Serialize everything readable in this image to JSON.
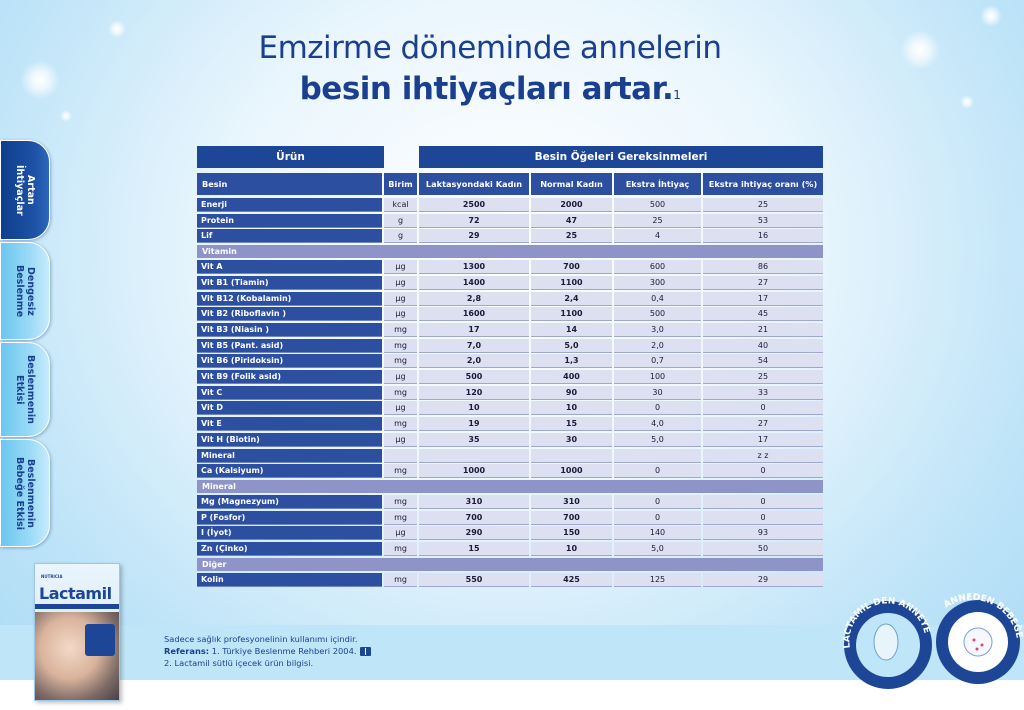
{
  "title": {
    "line1": "Emzirme döneminde annelerin",
    "line2": "besin ihtiyaçları artar.",
    "sup": "1"
  },
  "tabs": [
    {
      "label": "Artan\nİhtiyaçlar",
      "active": true
    },
    {
      "label": "Dengesiz\nBeslenme",
      "active": false
    },
    {
      "label": "Beslenmenin\nEtkisi",
      "active": false
    },
    {
      "label": "Beslenmenin\nBebeğe Etkisi",
      "active": false
    }
  ],
  "table": {
    "header_left": "Ürün",
    "header_right": "Besin Öğeleri Gereksinmeleri",
    "columns": [
      "Besin",
      "Birim",
      "Laktasyondaki Kadın",
      "Normal Kadın",
      "Ekstra İhtiyaç",
      "Ekstra ihtiyaç oranı (%)"
    ],
    "rows": [
      {
        "type": "row",
        "cells": [
          "Enerji",
          "kcal",
          "2500",
          "2000",
          "500",
          "25"
        ]
      },
      {
        "type": "row",
        "cells": [
          "Protein",
          "g",
          "72",
          "47",
          "25",
          "53"
        ]
      },
      {
        "type": "row",
        "cells": [
          "Lif",
          "g",
          "29",
          "25",
          "4",
          "16"
        ]
      },
      {
        "type": "section",
        "label": "Vitamin"
      },
      {
        "type": "row",
        "cells": [
          "Vit A",
          "µg",
          "1300",
          "700",
          "600",
          "86"
        ]
      },
      {
        "type": "row",
        "cells": [
          "Vit B1 (Tiamin)",
          "µg",
          "1400",
          "1100",
          "300",
          "27"
        ]
      },
      {
        "type": "row",
        "cells": [
          "Vit B12 (Kobalamin)",
          "µg",
          "2,8",
          "2,4",
          "0,4",
          "17"
        ]
      },
      {
        "type": "row",
        "cells": [
          "Vit B2 (Riboflavin )",
          "µg",
          "1600",
          "1100",
          "500",
          "45"
        ]
      },
      {
        "type": "row",
        "cells": [
          "Vit B3 (Niasin )",
          "mg",
          "17",
          "14",
          "3,0",
          "21"
        ]
      },
      {
        "type": "row",
        "cells": [
          "Vit B5 (Pant. asid)",
          "mg",
          "7,0",
          "5,0",
          "2,0",
          "40"
        ]
      },
      {
        "type": "row",
        "cells": [
          "Vit B6 (Piridoksin)",
          "mg",
          "2,0",
          "1,3",
          "0,7",
          "54"
        ]
      },
      {
        "type": "row",
        "cells": [
          "Vit B9 (Folik asid)",
          "µg",
          "500",
          "400",
          "100",
          "25"
        ]
      },
      {
        "type": "row",
        "cells": [
          "Vit C",
          "mg",
          "120",
          "90",
          "30",
          "33"
        ]
      },
      {
        "type": "row",
        "cells": [
          "Vit D",
          "µg",
          "10",
          "10",
          "0",
          "0"
        ]
      },
      {
        "type": "row",
        "cells": [
          "Vit E",
          "mg",
          "19",
          "15",
          "4,0",
          "27"
        ]
      },
      {
        "type": "row",
        "cells": [
          "Vit H (Biotin)",
          "µg",
          "35",
          "30",
          "5,0",
          "17"
        ]
      },
      {
        "type": "row",
        "cells": [
          "Mineral",
          "",
          "",
          "",
          "",
          "z   z"
        ]
      },
      {
        "type": "row",
        "cells": [
          "Ca (Kalsiyum)",
          "mg",
          "1000",
          "1000",
          "0",
          "0"
        ]
      },
      {
        "type": "section",
        "label": "Mineral"
      },
      {
        "type": "row",
        "cells": [
          "Mg (Magnezyum)",
          "mg",
          "310",
          "310",
          "0",
          "0"
        ]
      },
      {
        "type": "row",
        "cells": [
          "P (Fosfor)",
          "mg",
          "700",
          "700",
          "0",
          "0"
        ]
      },
      {
        "type": "row",
        "cells": [
          "I (İyot)",
          "µg",
          "290",
          "150",
          "140",
          "93"
        ]
      },
      {
        "type": "row",
        "cells": [
          "Zn (Çinko)",
          "mg",
          "15",
          "10",
          "5,0",
          "50"
        ]
      },
      {
        "type": "section",
        "label": "Diğer"
      },
      {
        "type": "row",
        "cells": [
          "Kolin",
          "mg",
          "550",
          "425",
          "125",
          "29"
        ]
      }
    ]
  },
  "footer": {
    "line1": "Sadece sağlık profesyonelinin kullanımı içindir.",
    "ref_label": "Referans:",
    "ref1": " 1. Türkiye Beslenme Rehberi 2004.",
    "line3": "2. Lactamil sütlü içecek ürün bilgisi."
  },
  "product": {
    "brand": "Lactamil",
    "maker": "NUTRICIA"
  },
  "logo": {
    "text_top": "ANNEDEN",
    "text_right": "BEBEĞE",
    "text_left": "LACTAMIL'DEN ANNEYE"
  },
  "colors": {
    "navy": "#1d4796",
    "header": "#2d4f9f",
    "cell": "#dde0f0",
    "section": "#8e94c7",
    "band": "#bfe6f8"
  }
}
